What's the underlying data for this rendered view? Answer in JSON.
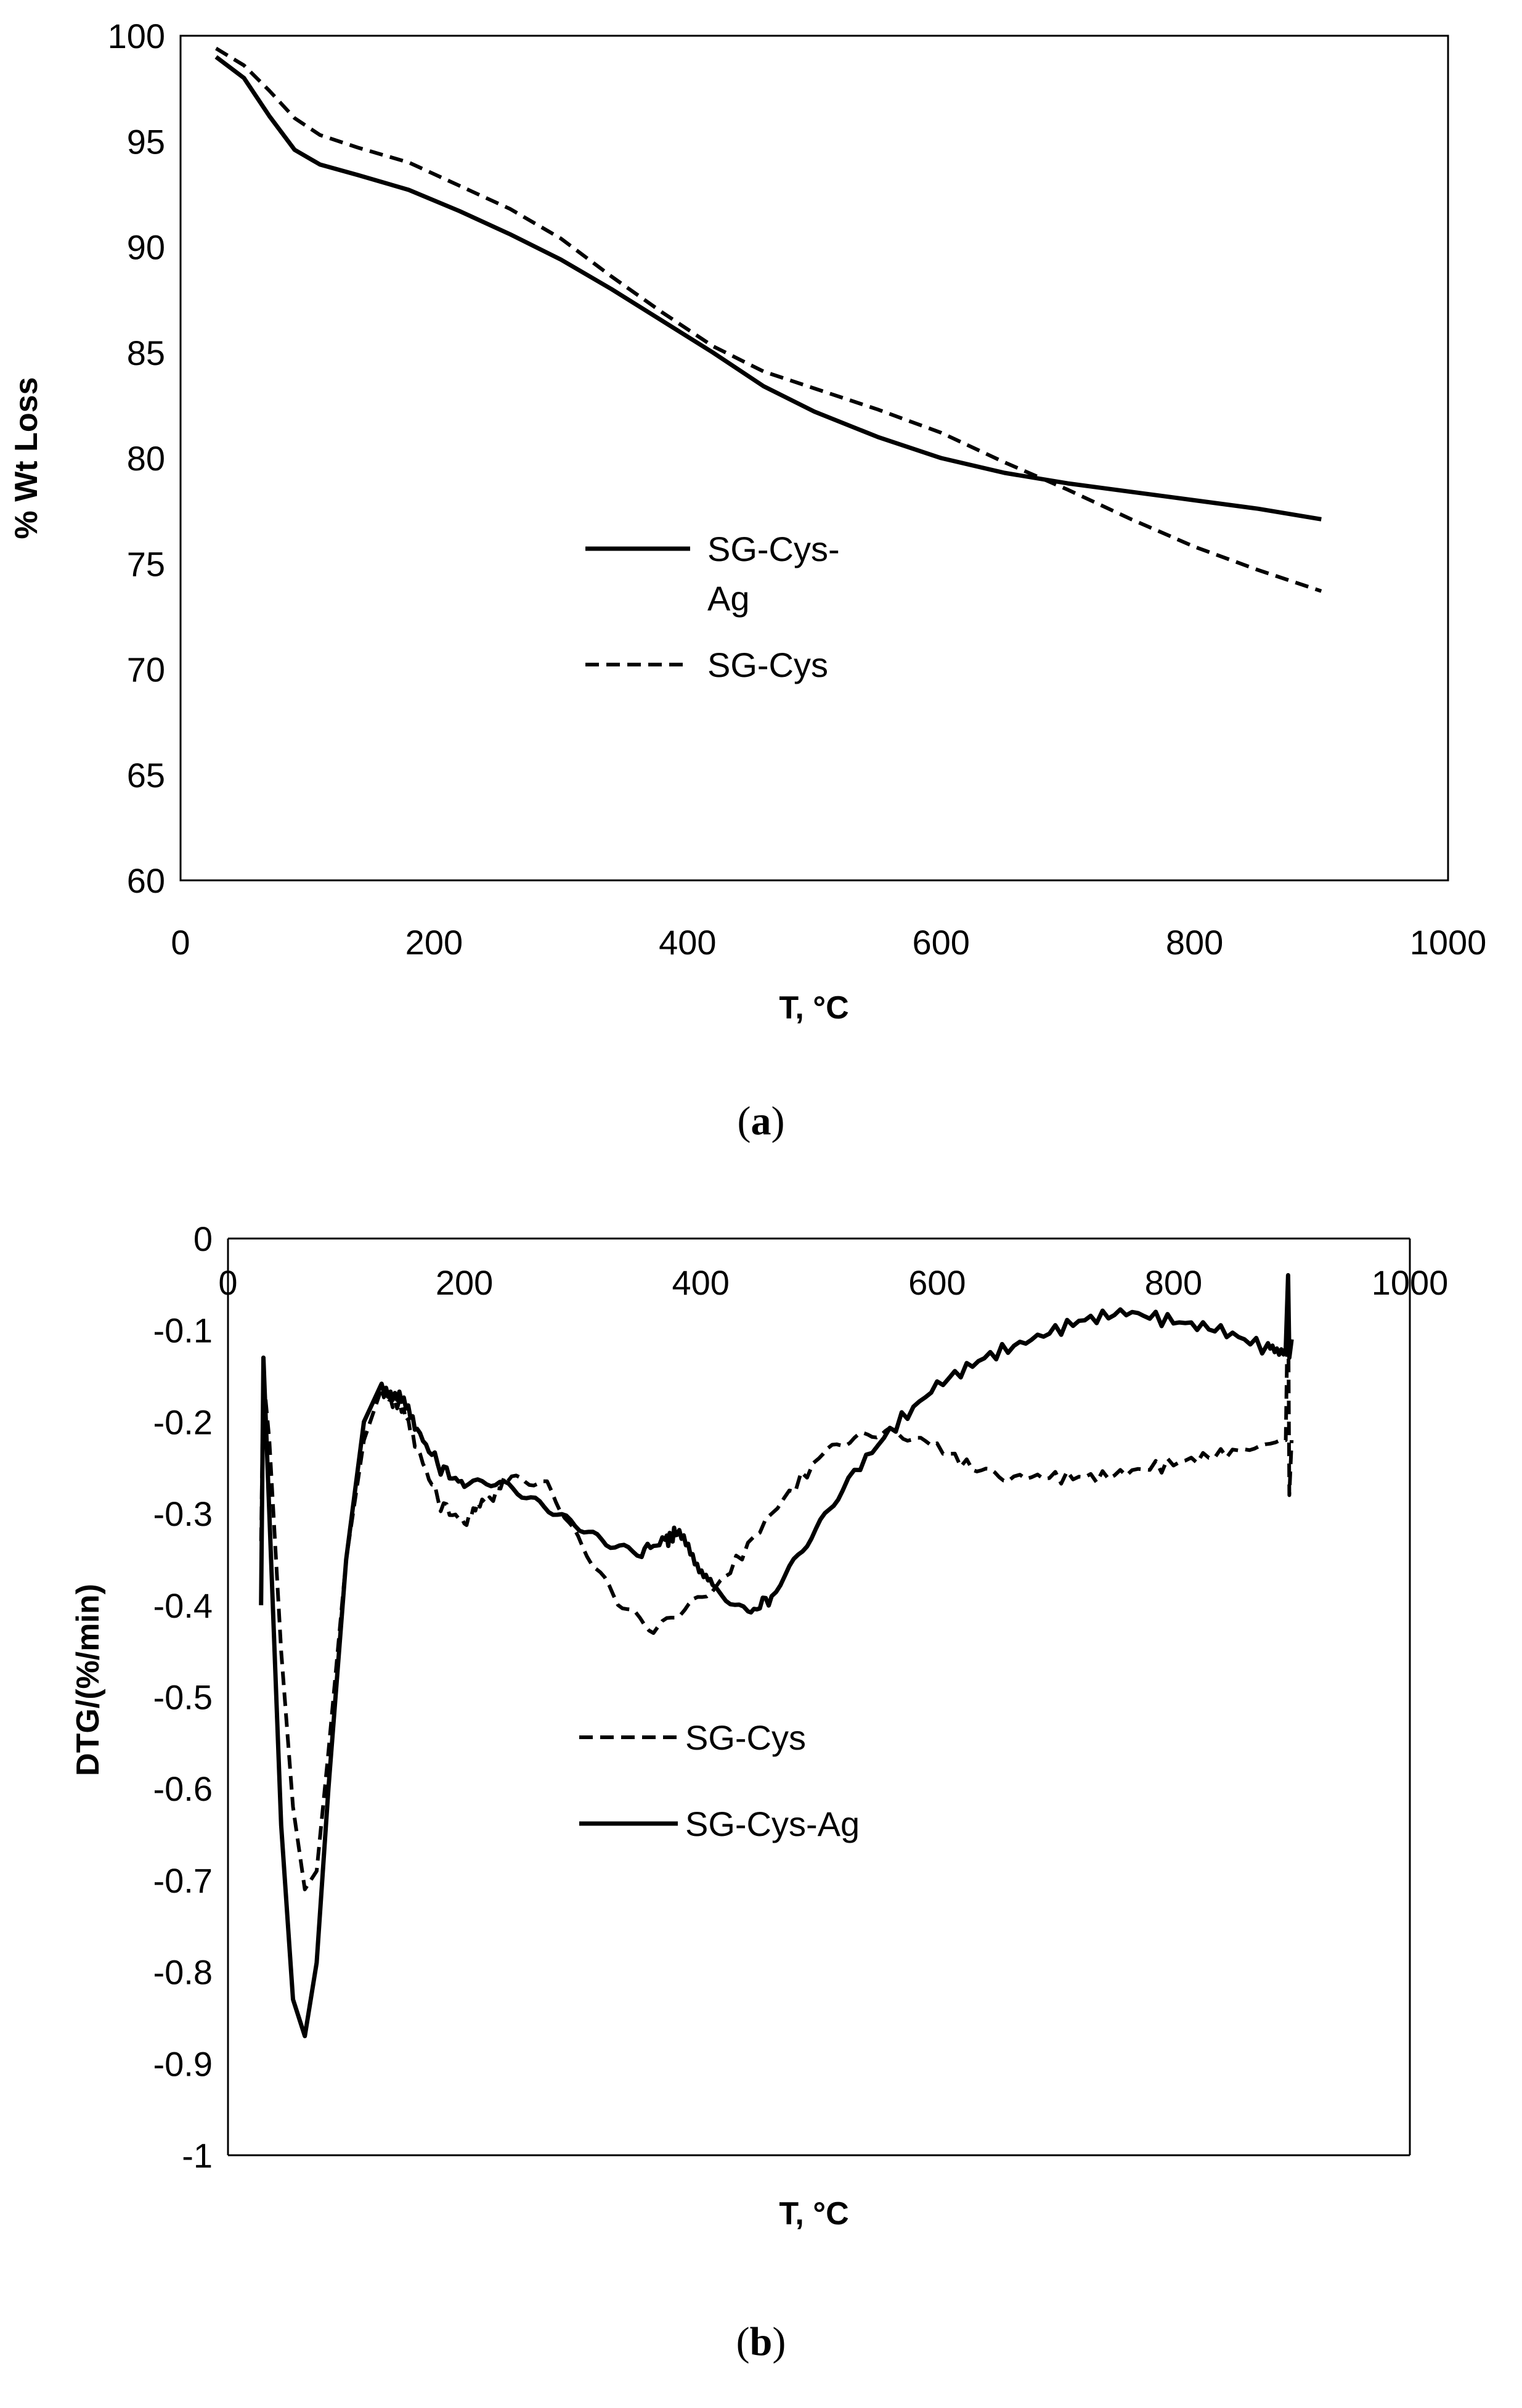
{
  "chart_data": [
    {
      "type": "line",
      "caption_open": "(",
      "caption_letter": "a",
      "caption_close": ")",
      "xlabel": "T, °C",
      "ylabel": "% Wt Loss",
      "xlim": [
        0,
        1000
      ],
      "ylim": [
        60,
        100
      ],
      "x_ticks": [
        "0",
        "200",
        "400",
        "600",
        "800",
        "1000"
      ],
      "y_ticks": [
        "60",
        "65",
        "70",
        "75",
        "80",
        "85",
        "90",
        "95",
        "100"
      ],
      "legend": [
        {
          "series": "SG-Cys-Ag",
          "lines": [
            "SG-Cys-",
            "Ag"
          ]
        },
        {
          "series": "SG-Cys",
          "lines": [
            "SG-Cys"
          ]
        }
      ],
      "series": [
        {
          "name": "SG-Cys-Ag",
          "style": "solid",
          "x": [
            28,
            50,
            70,
            90,
            110,
            140,
            180,
            220,
            260,
            300,
            340,
            380,
            420,
            460,
            500,
            550,
            600,
            650,
            700,
            750,
            800,
            850,
            900
          ],
          "y": [
            99.0,
            98.0,
            96.2,
            94.6,
            93.9,
            93.4,
            92.7,
            91.7,
            90.6,
            89.4,
            88.0,
            86.5,
            85.0,
            83.4,
            82.2,
            81.0,
            80.0,
            79.3,
            78.8,
            78.4,
            78.0,
            77.6,
            77.1
          ]
        },
        {
          "name": "SG-Cys",
          "style": "dashed",
          "x": [
            28,
            50,
            70,
            90,
            110,
            140,
            180,
            220,
            260,
            300,
            340,
            380,
            420,
            460,
            500,
            550,
            600,
            650,
            700,
            750,
            800,
            850,
            900
          ],
          "y": [
            99.4,
            98.6,
            97.4,
            96.1,
            95.3,
            94.7,
            94.0,
            92.9,
            91.8,
            90.4,
            88.6,
            86.9,
            85.3,
            84.1,
            83.3,
            82.3,
            81.2,
            79.8,
            78.5,
            77.1,
            75.8,
            74.7,
            73.7
          ]
        }
      ]
    },
    {
      "type": "line",
      "caption_open": "(",
      "caption_letter": "b",
      "caption_close": ")",
      "xlabel": "T, °C",
      "ylabel": "DTG/(%/min)",
      "xlim": [
        0,
        1000
      ],
      "ylim": [
        -1,
        0
      ],
      "x_ticks": [
        "0",
        "200",
        "400",
        "600",
        "800",
        "1000"
      ],
      "y_ticks": [
        "0",
        "-0.1",
        "-0.2",
        "-0.3",
        "-0.4",
        "-0.5",
        "-0.6",
        "-0.7",
        "-0.8",
        "-0.9",
        "-1"
      ],
      "legend": [
        {
          "series": "SG-Cys",
          "lines": [
            "SG-Cys"
          ]
        },
        {
          "series": "SG-Cys-Ag",
          "lines": [
            "SG-Cys-Ag"
          ]
        }
      ],
      "series": [
        {
          "name": "SG-Cys",
          "style": "dashed",
          "x": [
            28,
            30,
            35,
            45,
            55,
            65,
            75,
            85,
            100,
            115,
            130,
            145,
            160,
            180,
            200,
            215,
            240,
            270,
            300,
            330,
            360,
            390,
            420,
            460,
            500,
            530,
            560,
            590,
            630,
            660,
            700,
            740,
            780,
            820,
            860,
            895,
            897,
            898,
            900
          ],
          "y": [
            -0.33,
            -0.15,
            -0.22,
            -0.45,
            -0.62,
            -0.71,
            -0.69,
            -0.56,
            -0.35,
            -0.22,
            -0.17,
            -0.18,
            -0.23,
            -0.29,
            -0.31,
            -0.29,
            -0.26,
            -0.27,
            -0.34,
            -0.4,
            -0.43,
            -0.4,
            -0.37,
            -0.3,
            -0.24,
            -0.22,
            -0.21,
            -0.22,
            -0.25,
            -0.26,
            -0.26,
            -0.26,
            -0.25,
            -0.24,
            -0.23,
            -0.22,
            -0.05,
            -0.28,
            -0.22
          ]
        },
        {
          "name": "SG-Cys-Ag",
          "style": "solid",
          "x": [
            28,
            30,
            35,
            45,
            55,
            65,
            75,
            85,
            100,
            115,
            130,
            145,
            160,
            180,
            200,
            230,
            260,
            290,
            320,
            350,
            370,
            380,
            395,
            410,
            440,
            460,
            490,
            520,
            560,
            600,
            640,
            680,
            720,
            760,
            800,
            840,
            880,
            895,
            897,
            898,
            900
          ],
          "y": [
            -0.4,
            -0.13,
            -0.3,
            -0.64,
            -0.83,
            -0.87,
            -0.79,
            -0.6,
            -0.35,
            -0.2,
            -0.165,
            -0.17,
            -0.21,
            -0.25,
            -0.27,
            -0.27,
            -0.29,
            -0.31,
            -0.33,
            -0.34,
            -0.33,
            -0.32,
            -0.35,
            -0.38,
            -0.41,
            -0.39,
            -0.33,
            -0.27,
            -0.21,
            -0.16,
            -0.13,
            -0.11,
            -0.09,
            -0.08,
            -0.09,
            -0.1,
            -0.12,
            -0.12,
            -0.04,
            -0.13,
            -0.11
          ]
        }
      ]
    }
  ]
}
